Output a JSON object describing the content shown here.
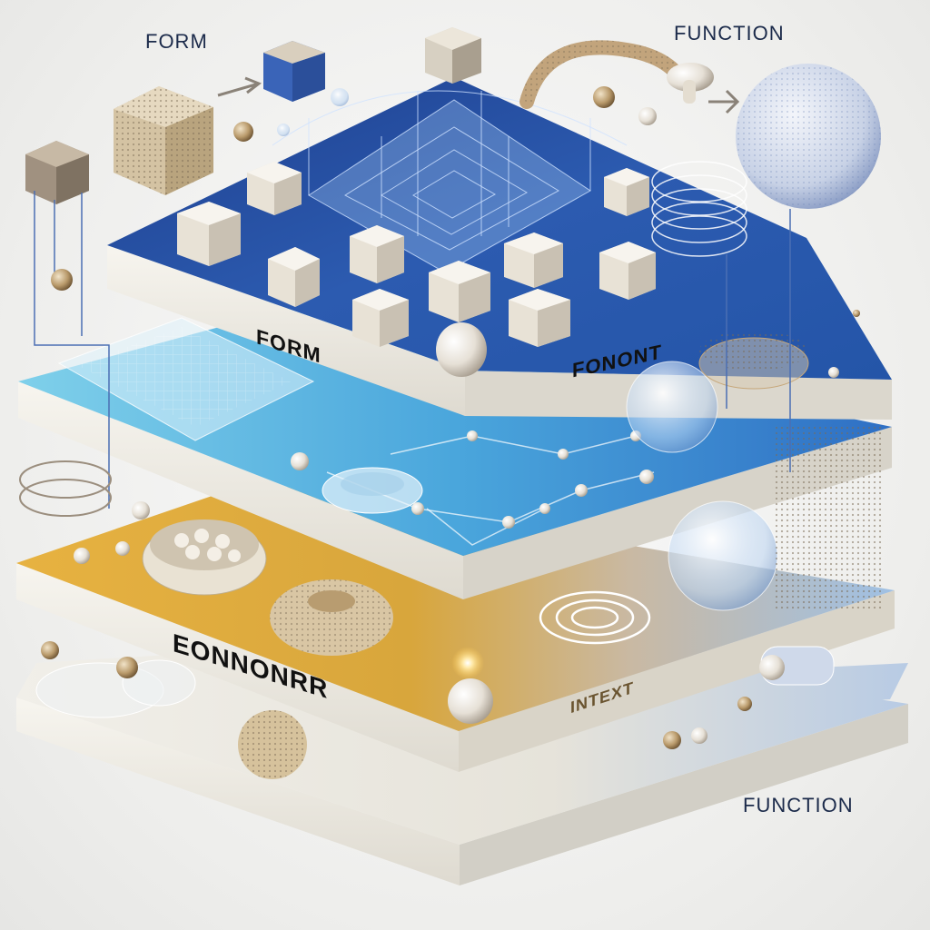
{
  "labels": {
    "top_left": "FORM",
    "top_right": "FUNCTION",
    "bottom_right": "FUNCTION",
    "slab1_left": "FORM",
    "slab1_right": "FONONT",
    "slab3_left": "EONNONRR",
    "slab3_right": "INTEXT"
  },
  "colors": {
    "background": "#f1f1f0",
    "slab_dark_blue": "#2a56a8",
    "slab_light_blue": "#5fb6e0",
    "slab_gold": "#e0ad3c",
    "slab_base": "#e8e5de",
    "label_text": "#1b2a4a"
  },
  "objects": {
    "cube": "cube-icon",
    "sphere": "sphere-icon",
    "ring": "ring-icon",
    "spark": "spark-icon"
  }
}
